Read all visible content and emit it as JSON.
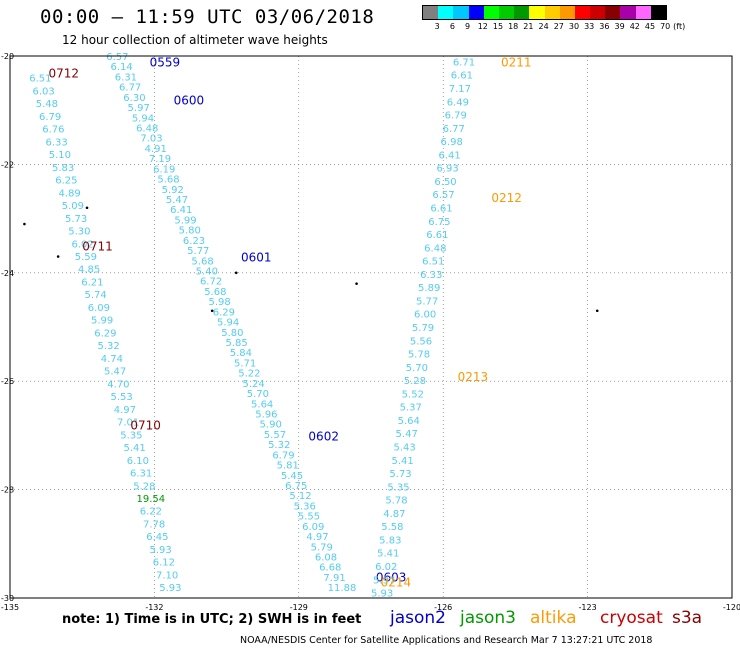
{
  "title": "00:00 — 11:59 UTC 03/06/2018",
  "subtitle": "12 hour collection of altimeter wave heights",
  "scale": {
    "labels": [
      "3",
      "6",
      "9",
      "12",
      "15",
      "18",
      "21",
      "24",
      "27",
      "30",
      "33",
      "36",
      "39",
      "42",
      "45",
      "70",
      "(ft)"
    ],
    "colors": [
      "#808080",
      "#00ffff",
      "#00c8ff",
      "#0000ff",
      "#00ff00",
      "#00cc00",
      "#009900",
      "#ffff00",
      "#ffcc00",
      "#ff9900",
      "#ff0000",
      "#cc0000",
      "#880000",
      "#aa00aa",
      "#ff66ff",
      "#000000"
    ]
  },
  "note": "note:  1) Time is in UTC;  2) SWH is in feet",
  "legend": [
    {
      "name": "jason2",
      "color": "#0000cc"
    },
    {
      "name": "jason3",
      "color": "#009900"
    },
    {
      "name": "altika",
      "color": "#ff9900"
    },
    {
      "name": "cryosat",
      "color": "#cc0000"
    },
    {
      "name": "s3a",
      "color": "#880000"
    }
  ],
  "credit": "NOAA/NESDIS Center for Satellite Applications and Research    Mar  7 13:27:21 UTC 2018",
  "chart_data": {
    "type": "scatter",
    "lon_range": [
      -135,
      -120
    ],
    "lat_range": [
      -30,
      -20
    ],
    "lon_ticks": [
      "-135",
      "-132",
      "-129",
      "-126",
      "-123",
      "-120"
    ],
    "lat_ticks": [
      "-20",
      "-22",
      "-24",
      "-26",
      "-28",
      "-30"
    ],
    "tracks": [
      {
        "satellite": "s3a",
        "color": "#55ccee",
        "start": [
          -134.6,
          -20.4
        ],
        "end": [
          -131.9,
          -29.8
        ],
        "values": [
          "6.51",
          "6.03",
          "5.48",
          "6.79",
          "6.76",
          "6.33",
          "5.10",
          "5.83",
          "6.25",
          "4.89",
          "5.09",
          "5.73",
          "5.30",
          "6.02",
          "5.59",
          "4.85",
          "6.21",
          "5.74",
          "6.09",
          "5.99",
          "6.29",
          "5.32",
          "4.74",
          "5.47",
          "4.70",
          "5.53",
          "4.97",
          "7.01",
          "5.35",
          "5.41",
          "6.10",
          "6.31",
          "5.28",
          "19.54",
          "6.22",
          "7.78",
          "6.45",
          "5.93",
          "6.12",
          "7.10",
          "5.93"
        ],
        "value_colors": {
          "19.54": "#009900"
        },
        "times": [
          {
            "label": "0712",
            "lat": -20.3,
            "lon": -134.2,
            "color": "#880000"
          },
          {
            "label": "0711",
            "lat": -23.5,
            "lon": -133.5,
            "color": "#880000"
          },
          {
            "label": "0710",
            "lat": -26.8,
            "lon": -132.5,
            "color": "#880000"
          }
        ]
      },
      {
        "satellite": "jason2",
        "color": "#55ccee",
        "start": [
          -133.0,
          -20.0
        ],
        "end": [
          -128.4,
          -29.8
        ],
        "values": [
          "6.57",
          "6.14",
          "6.31",
          "6.77",
          "6.30",
          "5.97",
          "5.94",
          "6.48",
          "7.03",
          "4.91",
          "7.19",
          "6.19",
          "5.68",
          "5.92",
          "5.47",
          "6.41",
          "5.99",
          "5.80",
          "6.23",
          "5.77",
          "5.68",
          "5.40",
          "6.72",
          "5.68",
          "5.98",
          "6.29",
          "5.94",
          "5.80",
          "5.85",
          "5.84",
          "5.71",
          "5.22",
          "5.24",
          "5.70",
          "5.64",
          "5.96",
          "5.90",
          "5.57",
          "5.32",
          "6.79",
          "5.81",
          "5.45",
          "6.75",
          "5.12",
          "5.36",
          "5.55",
          "6.09",
          "4.97",
          "5.79",
          "6.08",
          "6.68",
          "7.91",
          "11.88"
        ],
        "times": [
          {
            "label": "0559",
            "lat": -20.1,
            "lon": -132.1,
            "color": "#0000cc"
          },
          {
            "label": "0600",
            "lat": -20.8,
            "lon": -131.6,
            "color": "#0000cc"
          },
          {
            "label": "0601",
            "lat": -23.7,
            "lon": -130.2,
            "color": "#0000cc"
          },
          {
            "label": "0602",
            "lat": -27.0,
            "lon": -128.8,
            "color": "#0000cc"
          },
          {
            "label": "0603",
            "lat": -29.6,
            "lon": -127.4,
            "color": "#0000cc"
          }
        ]
      },
      {
        "satellite": "altika",
        "color": "#55ccee",
        "start": [
          -125.8,
          -20.1
        ],
        "end": [
          -127.5,
          -29.9
        ],
        "values": [
          "6.71",
          "6.61",
          "7.17",
          "6.49",
          "6.79",
          "6.77",
          "6.98",
          "6.41",
          "6.93",
          "6.50",
          "6.57",
          "6.61",
          "6.75",
          "6.61",
          "6.48",
          "6.51",
          "6.33",
          "5.89",
          "5.77",
          "6.00",
          "5.79",
          "5.56",
          "5.78",
          "5.70",
          "5.28",
          "5.52",
          "5.37",
          "5.64",
          "5.47",
          "5.43",
          "5.41",
          "5.73",
          "5.35",
          "5.78",
          "4.87",
          "5.58",
          "5.83",
          "5.41",
          "6.02",
          "5.97",
          "5.93"
        ],
        "times": [
          {
            "label": "0211",
            "lat": -20.1,
            "lon": -124.8,
            "color": "#ff9900"
          },
          {
            "label": "0212",
            "lat": -22.6,
            "lon": -125.0,
            "color": "#ff9900"
          },
          {
            "label": "0213",
            "lat": -25.9,
            "lon": -125.7,
            "color": "#ff9900"
          },
          {
            "label": "0214",
            "lat": -29.7,
            "lon": -127.3,
            "color": "#ff9900"
          }
        ]
      }
    ]
  }
}
